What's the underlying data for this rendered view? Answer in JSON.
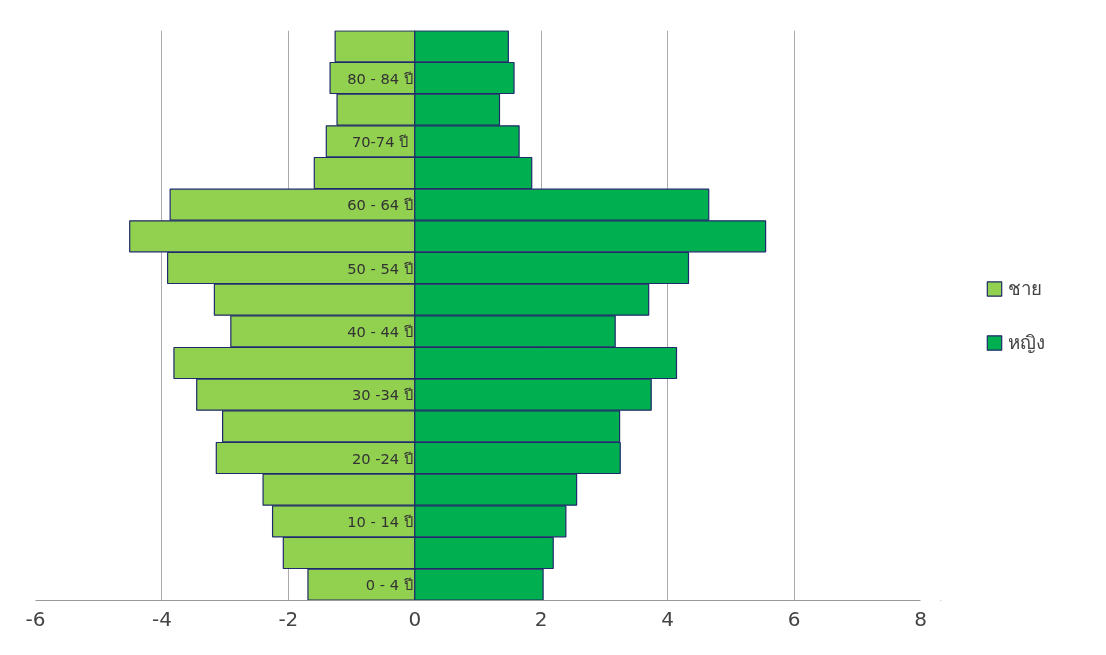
{
  "chart_data": {
    "type": "bar",
    "orientation": "horizontal",
    "stacked": true,
    "categories": [
      null,
      "80 - 84 ปี",
      null,
      "70-74  ปี",
      null,
      "60 - 64 ปี",
      null,
      "50 - 54 ปี",
      null,
      "40 - 44 ปี",
      null,
      "30 -34 ปี",
      null,
      "20 -24 ปี",
      null,
      "10 - 14 ปี",
      null,
      "0 - 4 ปี"
    ],
    "series": [
      {
        "name": "ชาย",
        "color": "#92d050",
        "values": [
          -1.26,
          -1.34,
          -1.23,
          -1.4,
          -1.59,
          -3.87,
          -4.51,
          -3.91,
          -3.17,
          -2.91,
          -3.81,
          -3.45,
          -3.04,
          -3.14,
          -2.4,
          -2.25,
          -2.08,
          -1.69
        ]
      },
      {
        "name": "หญิง",
        "color": "#00b050",
        "values": [
          1.48,
          1.57,
          1.34,
          1.65,
          1.85,
          4.65,
          5.55,
          4.33,
          3.7,
          3.17,
          4.14,
          3.74,
          3.24,
          3.25,
          2.56,
          2.39,
          2.19,
          2.03
        ]
      }
    ],
    "xlim": [
      -6,
      8
    ],
    "xticks": [
      -6,
      -4,
      -2,
      0,
      2,
      4,
      6,
      8
    ],
    "grid": "x",
    "legend": "right"
  }
}
